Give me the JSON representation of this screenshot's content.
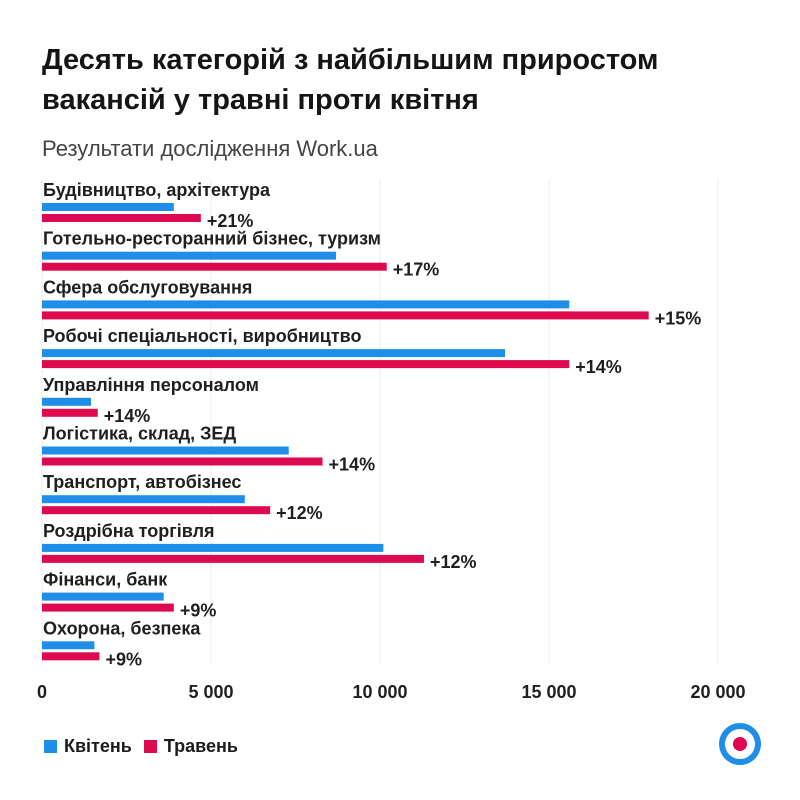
{
  "title": "Десять категорій з найбільшим приростом вакансій у травні проти квітня",
  "subtitle": "Результати дослідження Work.ua",
  "colors": {
    "april": "#1f8ee8",
    "may": "#dd0a4f"
  },
  "legend": [
    {
      "label": "Квітень",
      "color": "#1f8ee8"
    },
    {
      "label": "Травень",
      "color": "#dd0a4f"
    }
  ],
  "logo_icon": "work-ua-logo-icon",
  "chart_data": {
    "type": "bar",
    "orientation": "horizontal",
    "title": "Десять категорій з найбільшим приростом вакансій у травні проти квітня",
    "subtitle": "Результати дослідження Work.ua",
    "categories": [
      "Будівництво, архітектура",
      "Готельно-ресторанний бізнес, туризм",
      "Сфера обслуговування",
      "Робочі спеціальності, виробництво",
      "Управління персоналом",
      "Логістика, склад, ЗЕД",
      "Транспорт, автобізнес",
      "Роздрібна торгівля",
      "Фінанси, банк",
      "Охорона, безпека"
    ],
    "series": [
      {
        "name": "Квітень",
        "values": [
          3900,
          8700,
          15600,
          13700,
          1450,
          7300,
          6000,
          10100,
          3600,
          1550
        ]
      },
      {
        "name": "Травень",
        "values": [
          4700,
          10200,
          17950,
          15600,
          1650,
          8300,
          6750,
          11300,
          3900,
          1700
        ]
      }
    ],
    "change_labels": [
      "+21%",
      "+17%",
      "+15%",
      "+14%",
      "+14%",
      "+14%",
      "+12%",
      "+12%",
      "+9%",
      "+9%"
    ],
    "xlim": [
      0,
      20000
    ],
    "xticks": [
      0,
      5000,
      10000,
      15000,
      20000
    ],
    "xtick_labels": [
      "0",
      "5 000",
      "10 000",
      "15 000",
      "20 000"
    ],
    "xlabel": "",
    "ylabel": "",
    "grid": true,
    "legend_position": "bottom-left"
  }
}
